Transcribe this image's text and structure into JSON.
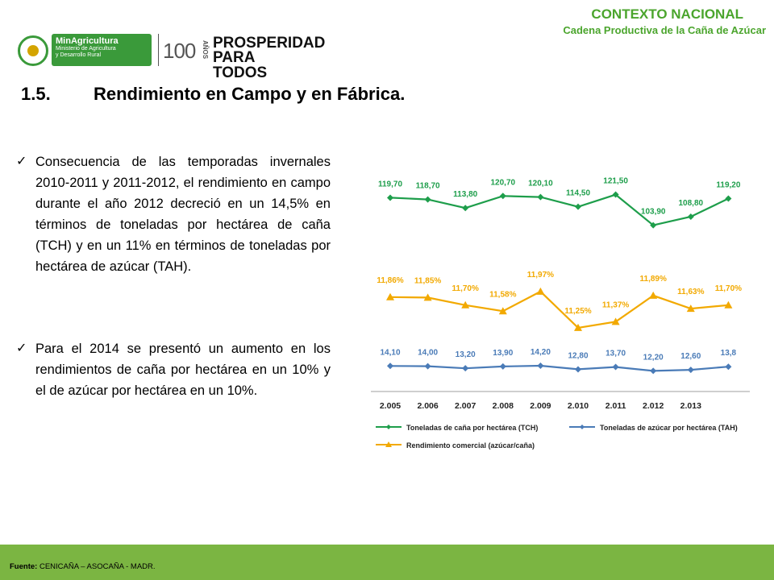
{
  "header": {
    "context_title": "CONTEXTO NACIONAL",
    "context_subtitle": "Cadena Productiva de la Caña de Azúcar"
  },
  "logos": {
    "ministry_name": "MinAgricultura",
    "ministry_line1": "Ministerio de Agricultura",
    "ministry_line2": "y Desarrollo Rural",
    "centenary_number": "100",
    "centenary_word": "AÑOS",
    "slogan_line1": "PROSPERIDAD",
    "slogan_line2": "PARA TODOS"
  },
  "section": {
    "number": "1.5.",
    "title": "Rendimiento en Campo y en Fábrica."
  },
  "bullets": [
    {
      "text": "Consecuencia de las temporadas invernales 2010-2011 y 2011-2012, el rendimiento  en campo durante el año 2012 decreció en un 14,5% en términos de toneladas por hectárea de caña (TCH) y en un 11% en términos de toneladas por hectárea de azúcar (TAH)."
    },
    {
      "text": "Para el  2014 se presentó un aumento en los rendimientos de caña por hectárea en un 10%  y  el  de azúcar por hectárea en un 10%."
    }
  ],
  "footer": {
    "source_label": "Fuente:",
    "source_text": "CENICAÑA – ASOCAÑA  -  MADR."
  },
  "chart_data": {
    "type": "line",
    "categories": [
      "2.005",
      "2.006",
      "2.007",
      "2.008",
      "2.009",
      "2.010",
      "2.011",
      "2.012",
      "2.013",
      ""
    ],
    "series": [
      {
        "name": "Toneladas de caña por hectárea (TCH)",
        "color": "#1e9e4b",
        "marker": "diamond",
        "values": [
          119.7,
          118.7,
          113.8,
          120.7,
          120.1,
          114.5,
          121.5,
          103.9,
          108.8,
          119.2
        ],
        "labels": [
          "119,70",
          "118,70",
          "113,80",
          "120,70",
          "120,10",
          "114,50",
          "121,50",
          "103,90",
          "108,80",
          "119,20"
        ]
      },
      {
        "name": "Rendimiento comercial (azúcar/caña)",
        "color": "#f2a900",
        "marker": "triangle",
        "values": [
          11.86,
          11.85,
          11.7,
          11.58,
          11.97,
          11.25,
          11.37,
          11.89,
          11.63,
          11.7
        ],
        "labels": [
          "11,86%",
          "11,85%",
          "11,70%",
          "11,58%",
          "11,97%",
          "11,25%",
          "11,37%",
          "11,89%",
          "11,63%",
          "11,70%"
        ]
      },
      {
        "name": "Toneladas de azúcar por hectárea (TAH)",
        "color": "#4a7bb7",
        "marker": "diamond",
        "values": [
          14.1,
          14.0,
          13.2,
          13.9,
          14.2,
          12.8,
          13.7,
          12.2,
          12.6,
          13.8
        ],
        "labels": [
          "14,10",
          "14,00",
          "13,20",
          "13,90",
          "14,20",
          "12,80",
          "13,70",
          "12,20",
          "12,60",
          "13,8"
        ]
      }
    ],
    "legend_order": [
      "Toneladas de caña por hectárea (TCH)",
      "Toneladas de azúcar por hectárea (TAH)",
      "Rendimiento comercial (azúcar/caña)"
    ],
    "legend_position": "bottom",
    "grid": false
  }
}
